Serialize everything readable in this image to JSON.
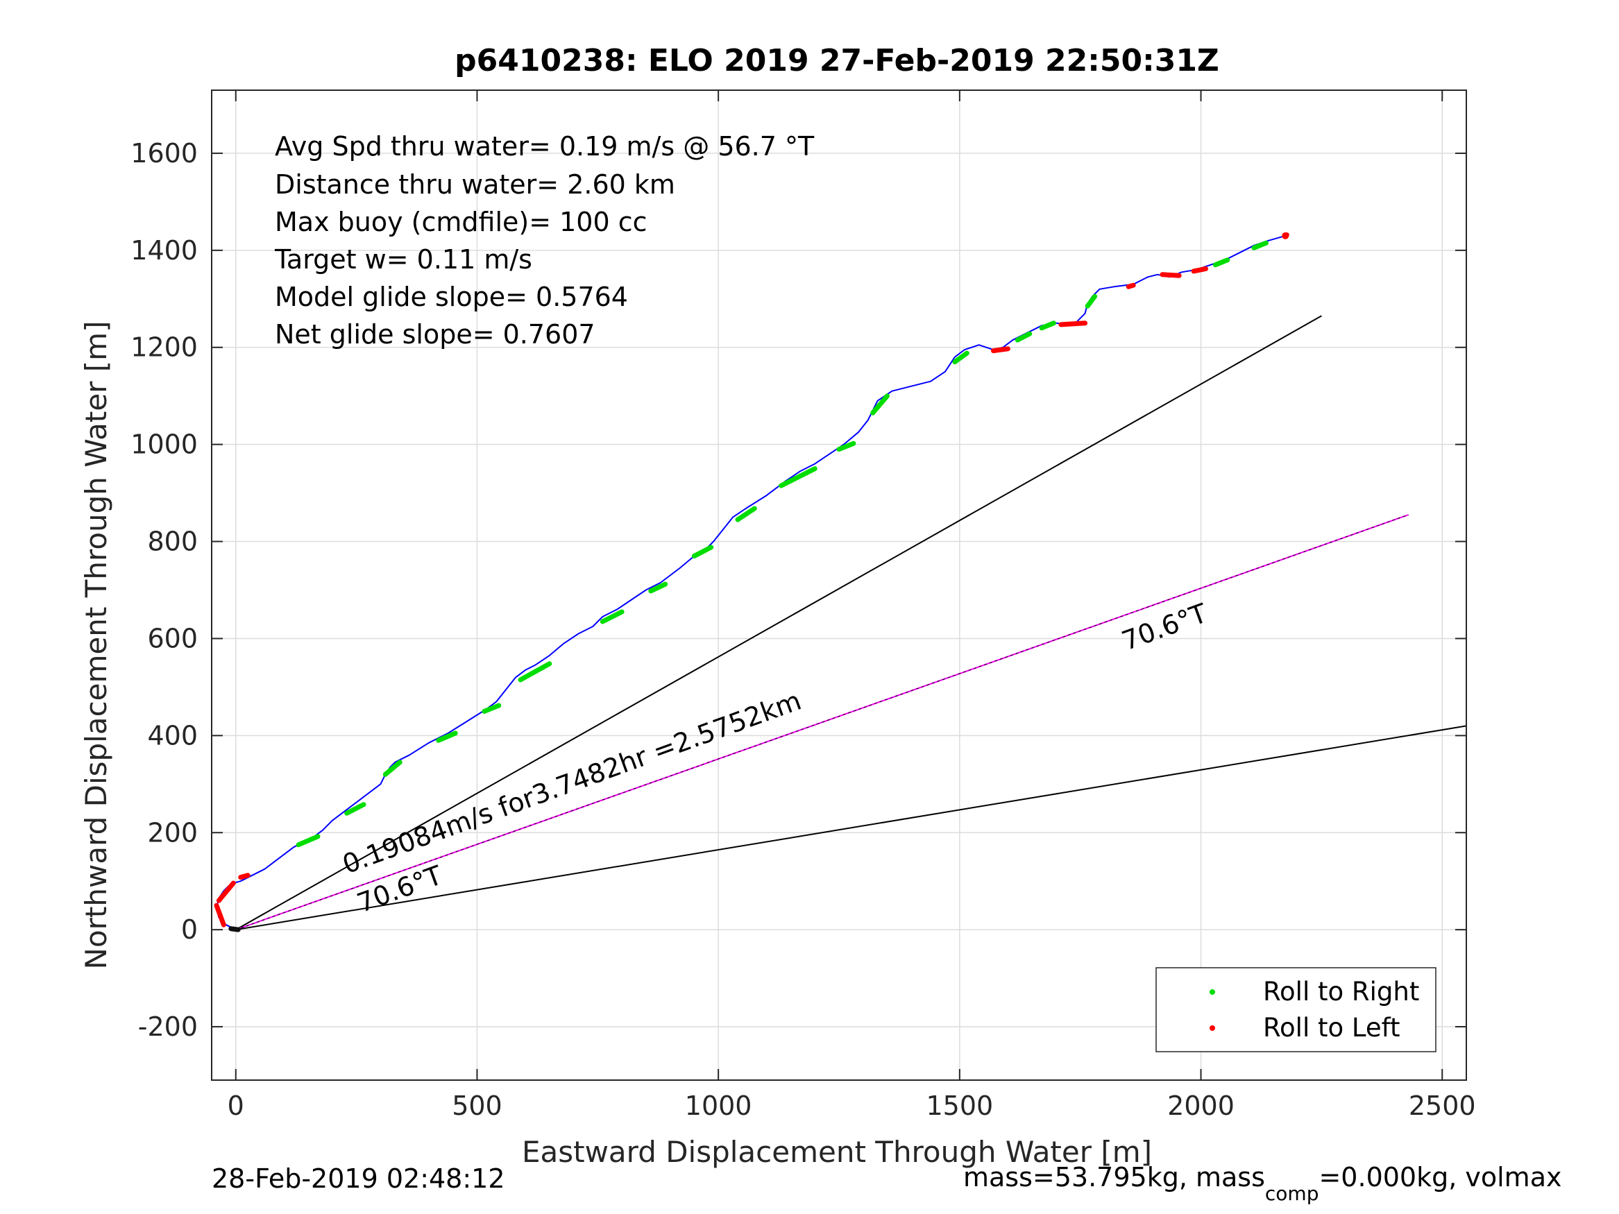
{
  "chart_data": {
    "type": "line",
    "title": "p6410238: ELO 2019 27-Feb-2019 22:50:31Z",
    "xlabel": "Eastward Displacement Through Water [m]",
    "ylabel": "Northward Displacement Through Water [m]",
    "xlim": [
      -50,
      2550
    ],
    "ylim": [
      -310,
      1730
    ],
    "xticks": [
      0,
      500,
      1000,
      1500,
      2000,
      2500
    ],
    "yticks": [
      -200,
      0,
      200,
      400,
      600,
      800,
      1000,
      1200,
      1400,
      1600
    ],
    "xtick_labels": [
      "0",
      "500",
      "1000",
      "1500",
      "2000",
      "2500"
    ],
    "ytick_labels": [
      "-200",
      "0",
      "200",
      "400",
      "600",
      "800",
      "1000",
      "1200",
      "1400",
      "1600"
    ],
    "grid": true,
    "info_lines": [
      "Avg Spd thru water=  0.19 m/s @  56.7 °T",
      "Distance thru water=  2.60 km",
      "Max buoy (cmdfile)= 100 cc",
      "Target w= 0.11 m/s",
      "Model glide slope= 0.5764",
      "Net glide slope= 0.7607"
    ],
    "series": [
      {
        "name": "track",
        "color": "#0000ff",
        "x": [
          0,
          -20,
          -35,
          -40,
          -35,
          -25,
          -15,
          -5,
          10,
          20,
          40,
          60,
          80,
          100,
          120,
          140,
          160,
          180,
          200,
          220,
          240,
          260,
          280,
          300,
          310,
          320,
          330,
          360,
          400,
          440,
          480,
          520,
          540,
          560,
          580,
          600,
          620,
          650,
          680,
          710,
          740,
          760,
          770,
          790,
          820,
          850,
          880,
          920,
          950,
          970,
          990,
          1010,
          1030,
          1060,
          1100,
          1140,
          1170,
          1200,
          1230,
          1260,
          1290,
          1310,
          1330,
          1360,
          1400,
          1440,
          1470,
          1490,
          1510,
          1540,
          1570,
          1590,
          1610,
          1640,
          1670,
          1700,
          1720,
          1740,
          1760,
          1765,
          1775,
          1790,
          1820,
          1860,
          1890,
          1910,
          1935,
          1960,
          1990,
          2020,
          2050,
          2080,
          2110,
          2140,
          2175
        ],
        "y": [
          0,
          10,
          25,
          45,
          65,
          80,
          90,
          96,
          100,
          105,
          115,
          125,
          140,
          155,
          170,
          180,
          190,
          205,
          225,
          240,
          255,
          270,
          285,
          300,
          320,
          335,
          345,
          360,
          385,
          405,
          430,
          455,
          470,
          495,
          520,
          535,
          545,
          565,
          590,
          610,
          625,
          645,
          650,
          660,
          680,
          700,
          715,
          745,
          770,
          780,
          800,
          825,
          850,
          870,
          895,
          925,
          945,
          960,
          980,
          1000,
          1025,
          1050,
          1090,
          1110,
          1120,
          1130,
          1150,
          1180,
          1195,
          1205,
          1195,
          1200,
          1215,
          1230,
          1245,
          1250,
          1248,
          1250,
          1270,
          1290,
          1305,
          1320,
          1325,
          1330,
          1345,
          1350,
          1345,
          1355,
          1360,
          1370,
          1380,
          1395,
          1410,
          1420,
          1430
        ]
      },
      {
        "name": "Roll to Right",
        "marker_color": "#00dd00",
        "segments": [
          [
            [
              130,
              175
            ],
            [
              170,
              192
            ]
          ],
          [
            [
              230,
              240
            ],
            [
              265,
              258
            ]
          ],
          [
            [
              310,
              320
            ],
            [
              340,
              345
            ]
          ],
          [
            [
              420,
              390
            ],
            [
              455,
              405
            ]
          ],
          [
            [
              515,
              450
            ],
            [
              545,
              462
            ]
          ],
          [
            [
              590,
              515
            ],
            [
              650,
              548
            ]
          ],
          [
            [
              760,
              635
            ],
            [
              800,
              655
            ]
          ],
          [
            [
              860,
              698
            ],
            [
              890,
              712
            ]
          ],
          [
            [
              950,
              770
            ],
            [
              985,
              788
            ]
          ],
          [
            [
              1040,
              845
            ],
            [
              1075,
              868
            ]
          ],
          [
            [
              1130,
              915
            ],
            [
              1200,
              950
            ]
          ],
          [
            [
              1250,
              990
            ],
            [
              1280,
              1002
            ]
          ],
          [
            [
              1320,
              1065
            ],
            [
              1350,
              1100
            ]
          ],
          [
            [
              1490,
              1170
            ],
            [
              1515,
              1188
            ]
          ],
          [
            [
              1620,
              1215
            ],
            [
              1645,
              1228
            ]
          ],
          [
            [
              1670,
              1240
            ],
            [
              1695,
              1250
            ]
          ],
          [
            [
              1765,
              1285
            ],
            [
              1780,
              1305
            ]
          ],
          [
            [
              2030,
              1370
            ],
            [
              2055,
              1380
            ]
          ],
          [
            [
              2110,
              1405
            ],
            [
              2135,
              1415
            ]
          ]
        ]
      },
      {
        "name": "Roll to Left",
        "marker_color": "#ff0000",
        "segments": [
          [
            [
              -5,
              96
            ],
            [
              -35,
              60
            ]
          ],
          [
            [
              -40,
              50
            ],
            [
              -25,
              10
            ]
          ],
          [
            [
              10,
              108
            ],
            [
              25,
              112
            ]
          ],
          [
            [
              1570,
              1193
            ],
            [
              1600,
              1197
            ]
          ],
          [
            [
              1710,
              1247
            ],
            [
              1760,
              1250
            ]
          ],
          [
            [
              1850,
              1325
            ],
            [
              1860,
              1328
            ]
          ],
          [
            [
              1920,
              1350
            ],
            [
              1955,
              1348
            ]
          ],
          [
            [
              1985,
              1357
            ],
            [
              2010,
              1362
            ]
          ],
          [
            [
              2175,
              1430
            ],
            [
              2178,
              1432
            ]
          ]
        ]
      },
      {
        "name": "model line (black, upper)",
        "color": "#000000",
        "x": [
          0,
          2250
        ],
        "y": [
          0,
          1265
        ]
      },
      {
        "name": "avg heading line (magenta)",
        "color": "#ff00ff",
        "x": [
          0,
          2430
        ],
        "y": [
          0,
          855
        ]
      },
      {
        "name": "lower black line",
        "color": "#000000",
        "x": [
          0,
          2550
        ],
        "y": [
          0,
          420
        ]
      }
    ],
    "annotations": [
      {
        "text": "0.19084m/s for3.7482hr =2.5752km",
        "x": 230,
        "y": 115,
        "angle_deg": -20
      },
      {
        "text": "70.6°T",
        "x": 1845,
        "y": 575,
        "angle_deg": -20
      },
      {
        "text": "70.6°T",
        "x": 260,
        "y": 35,
        "angle_deg": -20
      }
    ],
    "legend": {
      "position": "bottom-right",
      "entries": [
        {
          "label": "Roll to Right",
          "color": "#00dd00"
        },
        {
          "label": "Roll to Left",
          "color": "#ff0000"
        }
      ]
    }
  },
  "footer": {
    "left": "28-Feb-2019 02:48:12",
    "right_main": "mass=53.795kg, mass",
    "right_sub": "comp",
    "right_tail": "=0.000kg, volmax"
  }
}
